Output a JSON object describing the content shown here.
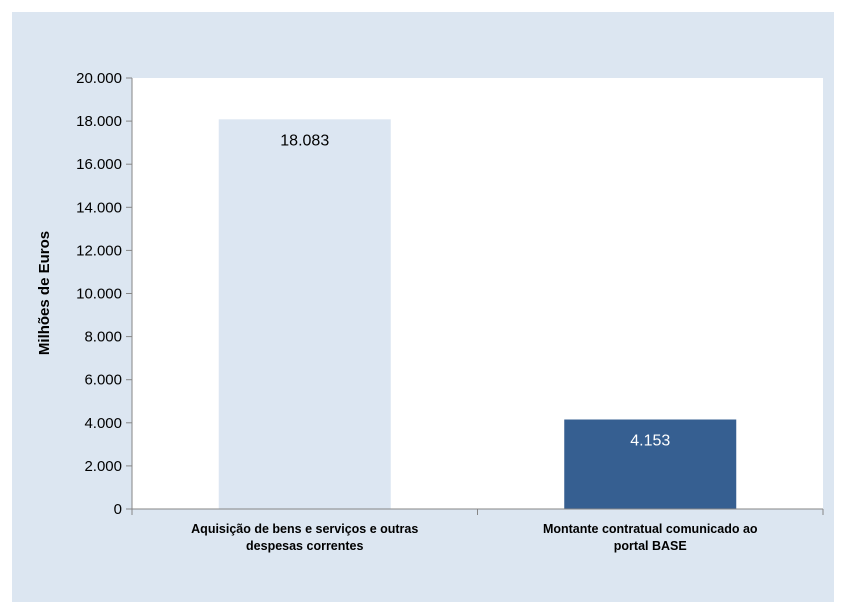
{
  "chart_data": {
    "type": "bar",
    "title": "",
    "xlabel": "",
    "ylabel": "Milhões de Euros",
    "ylim": [
      0,
      20000
    ],
    "ytick_step": 2000,
    "yticks": [
      "0",
      "2.000",
      "4.000",
      "6.000",
      "8.000",
      "10.000",
      "12.000",
      "14.000",
      "16.000",
      "18.000",
      "20.000"
    ],
    "categories": [
      [
        "Aquisição de bens e serviços e outras",
        "despesas correntes"
      ],
      [
        "Montante contratual comunicado ao",
        "portal BASE"
      ]
    ],
    "values": [
      18083,
      4153
    ],
    "data_labels": [
      "18.083",
      "4.153"
    ],
    "bar_colors": [
      "#dce6f2",
      "#365f91"
    ],
    "data_label_colors": [
      "#000000",
      "#ffffff"
    ],
    "grid": false,
    "legend": "none",
    "plot_background": "#ffffff",
    "frame_background": "#dce6f1"
  }
}
